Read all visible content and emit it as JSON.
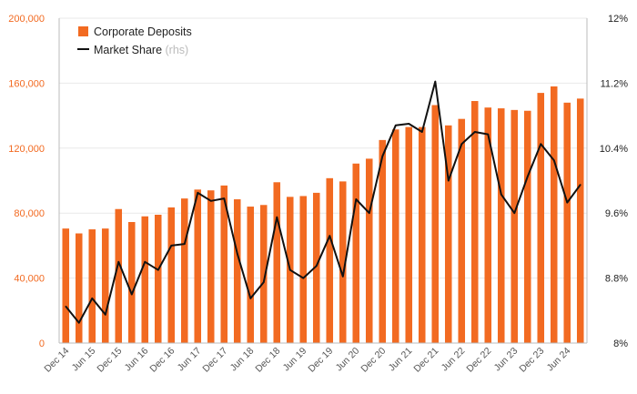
{
  "chart_data": {
    "type": "bar",
    "x": [
      "Dec 14",
      "Mar 15",
      "Jun 15",
      "Sep 15",
      "Dec 15",
      "Mar 16",
      "Jun 16",
      "Sep 16",
      "Dec 16",
      "Mar 17",
      "Jun 17",
      "Sep 17",
      "Dec 17",
      "Mar 18",
      "Jun 18",
      "Sep 18",
      "Dec 18",
      "Mar 19",
      "Jun 19",
      "Sep 19",
      "Dec 19",
      "Mar 20",
      "Jun 20",
      "Sep 20",
      "Dec 20",
      "Mar 21",
      "Jun 21",
      "Sep 21",
      "Dec 21",
      "Mar 22",
      "Jun 22",
      "Sep 22",
      "Dec 22",
      "Mar 23",
      "Jun 23",
      "Sep 23",
      "Dec 23",
      "Mar 24",
      "Jun 24",
      "Sep 24"
    ],
    "x_tick_labels": [
      "Dec 14",
      "Jun 15",
      "Dec 15",
      "Jun 16",
      "Dec 16",
      "Jun 17",
      "Dec 17",
      "Jun 18",
      "Dec 18",
      "Jun 19",
      "Dec 19",
      "Jun 20",
      "Dec 20",
      "Jun 21",
      "Dec 21",
      "Jun 22",
      "Dec 22",
      "Jun 23",
      "Dec 23",
      "Jun 24"
    ],
    "series": [
      {
        "name": "Corporate Deposits",
        "type": "bar",
        "axis": "left",
        "color": "#f26a21",
        "values": [
          70500,
          67500,
          70000,
          70500,
          82500,
          74500,
          78000,
          79000,
          83500,
          89000,
          94500,
          94000,
          97000,
          88500,
          84000,
          85000,
          99000,
          90000,
          90500,
          92500,
          101500,
          99500,
          110500,
          113500,
          125000,
          131500,
          133000,
          133000,
          146500,
          134000,
          138000,
          149000,
          145000,
          144500,
          143500,
          143000,
          154000,
          158000,
          148000,
          150500
        ]
      },
      {
        "name": "Market Share",
        "name_suffix": "(rhs)",
        "type": "line",
        "axis": "right",
        "color": "#111111",
        "values": [
          8.45,
          8.25,
          8.55,
          8.35,
          9.0,
          8.6,
          9.0,
          8.9,
          9.2,
          9.22,
          9.85,
          9.75,
          9.78,
          9.1,
          8.55,
          8.75,
          9.55,
          8.9,
          8.8,
          8.95,
          9.32,
          8.82,
          9.77,
          9.6,
          10.3,
          10.68,
          10.7,
          10.6,
          11.22,
          10.0,
          10.45,
          10.6,
          10.57,
          9.83,
          9.6,
          10.05,
          10.45,
          10.25,
          9.73,
          9.95
        ]
      }
    ],
    "y_left": {
      "min": 0,
      "max": 200000,
      "ticks": [
        0,
        40000,
        80000,
        120000,
        160000,
        200000
      ],
      "tick_labels": [
        "0",
        "40,000",
        "80,000",
        "120,000",
        "160,000",
        "200,000"
      ],
      "color": "#f26a21"
    },
    "y_right": {
      "min": 8,
      "max": 12,
      "ticks": [
        8,
        8.8,
        9.6,
        10.4,
        11.2,
        12
      ],
      "tick_labels": [
        "8%",
        "8.8%",
        "9.6%",
        "10.4%",
        "11.2%",
        "12%"
      ]
    },
    "grid": "horizontal",
    "grid_color": "#e9e9e9",
    "legend_position": "top-left"
  }
}
